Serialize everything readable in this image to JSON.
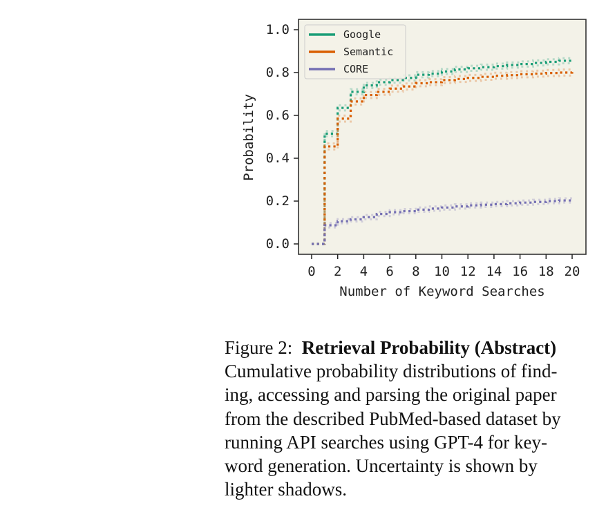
{
  "chart_data": {
    "type": "line",
    "subtype": "step",
    "title": "",
    "xlabel": "Number of Keyword Searches",
    "ylabel": "Probability",
    "xlim": [
      -1,
      21
    ],
    "ylim": [
      -0.05,
      1.05
    ],
    "xticks": [
      0,
      2,
      4,
      6,
      8,
      10,
      12,
      14,
      16,
      18,
      20
    ],
    "xtick_labels": [
      "0",
      "2",
      "4",
      "6",
      "8",
      "10",
      "12",
      "14",
      "16",
      "18",
      "20"
    ],
    "yticks": [
      0.0,
      0.2,
      0.4,
      0.6,
      0.8,
      1.0
    ],
    "ytick_labels": [
      "0.0",
      "0.2",
      "0.4",
      "0.6",
      "0.8",
      "1.0"
    ],
    "grid": false,
    "legend_position": "upper left",
    "background": "#f3f2e8",
    "line_style": "dotted",
    "uncertainty": "lighter shadows",
    "x": [
      0,
      1,
      2,
      3,
      4,
      5,
      6,
      7,
      8,
      9,
      10,
      11,
      12,
      13,
      14,
      15,
      16,
      17,
      18,
      19,
      20
    ],
    "series": [
      {
        "name": "Google",
        "color": "#1b9e77",
        "values": [
          0.0,
          0.515,
          0.635,
          0.71,
          0.74,
          0.755,
          0.765,
          0.775,
          0.79,
          0.795,
          0.805,
          0.815,
          0.82,
          0.825,
          0.83,
          0.835,
          0.84,
          0.845,
          0.85,
          0.855,
          0.858
        ],
        "band_offset": 0.012
      },
      {
        "name": "Semantic",
        "color": "#d95f02",
        "values": [
          0.0,
          0.455,
          0.585,
          0.665,
          0.695,
          0.71,
          0.725,
          0.735,
          0.75,
          0.755,
          0.765,
          0.77,
          0.775,
          0.78,
          0.785,
          0.788,
          0.792,
          0.795,
          0.798,
          0.8,
          0.803
        ],
        "band_offset": 0.014
      },
      {
        "name": "CORE",
        "color": "#7570b3",
        "values": [
          0.0,
          0.087,
          0.106,
          0.115,
          0.125,
          0.14,
          0.148,
          0.153,
          0.16,
          0.165,
          0.17,
          0.175,
          0.18,
          0.183,
          0.186,
          0.19,
          0.193,
          0.196,
          0.2,
          0.203,
          0.206
        ],
        "band_offset": 0.01
      }
    ]
  },
  "caption": {
    "label": "Figure 2:",
    "title": "Retrieval Probability (Abstract)",
    "lines": [
      "Cumulative probability distributions of find-",
      "ing, accessing and parsing the original paper",
      "from the described PubMed-based dataset by",
      "running API searches using GPT-4 for key-",
      "word generation.  Uncertainty is shown by",
      "lighter shadows."
    ]
  }
}
